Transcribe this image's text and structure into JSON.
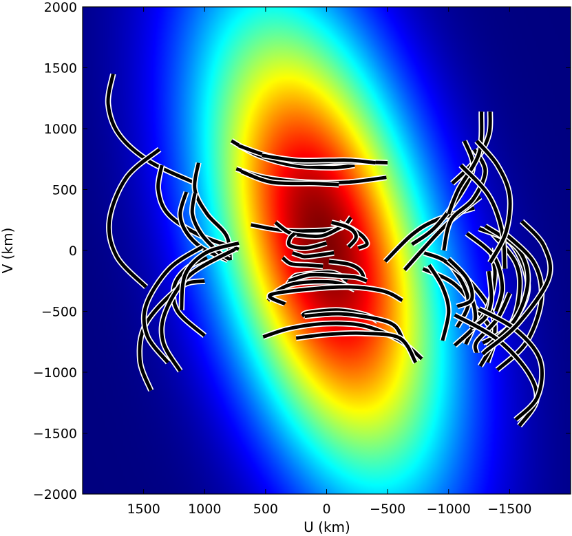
{
  "chart_data": {
    "type": "heatmap",
    "title": "",
    "xlabel": "U (km)",
    "ylabel": "V (km)",
    "x_inverted": true,
    "xlim": [
      2000,
      -2000
    ],
    "ylim": [
      -2000,
      2000
    ],
    "x_ticks": [
      1500,
      1000,
      500,
      0,
      -500,
      -1000,
      -1500
    ],
    "x_tick_labels": [
      "1500",
      "1000",
      "500",
      "0",
      "−500",
      "−1000",
      "−1500"
    ],
    "y_ticks": [
      2000,
      1500,
      1000,
      500,
      0,
      -500,
      -1000,
      -1500,
      -2000
    ],
    "y_tick_labels": [
      "2000",
      "1500",
      "1000",
      "500",
      "0",
      "−500",
      "−1000",
      "−1500",
      "−2000"
    ],
    "grid": false,
    "colormap": "jet",
    "colormap_colors": [
      "#00007f",
      "#0000ff",
      "#007fff",
      "#00ffff",
      "#7fff7f",
      "#ffff00",
      "#ff7f00",
      "#ff0000",
      "#7f0000"
    ],
    "heatmap_model": {
      "shape": "elliptical gaussian",
      "center": [
        20,
        50
      ],
      "sigma_major": 1450,
      "sigma_minor": 600,
      "rotation_deg": 15
    },
    "uv_tracks": [
      {
        "points": [
          [
            1750,
            1450
          ],
          [
            1790,
            1200
          ],
          [
            1700,
            950
          ],
          [
            1450,
            730
          ],
          [
            1070,
            550
          ]
        ]
      },
      {
        "points": [
          [
            1350,
            700
          ],
          [
            1380,
            500
          ],
          [
            1300,
            300
          ],
          [
            1050,
            130
          ],
          [
            720,
            10
          ]
        ]
      },
      {
        "points": [
          [
            1050,
            720
          ],
          [
            1080,
            500
          ],
          [
            980,
            300
          ],
          [
            820,
            120
          ],
          [
            790,
            -80
          ]
        ]
      },
      {
        "points": [
          [
            1150,
            480
          ],
          [
            1200,
            300
          ],
          [
            1150,
            150
          ],
          [
            1020,
            20
          ],
          [
            810,
            -80
          ]
        ]
      },
      {
        "points": [
          [
            1080,
            470
          ],
          [
            1100,
            300
          ],
          [
            1030,
            140
          ],
          [
            900,
            0
          ],
          [
            800,
            -70
          ]
        ]
      },
      {
        "points": [
          [
            1370,
            830
          ],
          [
            1640,
            600
          ],
          [
            1780,
            250
          ],
          [
            1720,
            -50
          ],
          [
            1480,
            -300
          ]
        ]
      },
      {
        "points": [
          [
            1000,
            -700
          ],
          [
            1220,
            -500
          ],
          [
            1250,
            -300
          ],
          [
            1150,
            -150
          ],
          [
            980,
            -60
          ]
        ]
      },
      {
        "points": [
          [
            1440,
            -1150
          ],
          [
            1530,
            -900
          ],
          [
            1480,
            -600
          ],
          [
            1200,
            -300
          ],
          [
            1000,
            -250
          ]
        ]
      },
      {
        "points": [
          [
            1300,
            -920
          ],
          [
            1470,
            -700
          ],
          [
            1480,
            -450
          ],
          [
            1290,
            -150
          ],
          [
            1020,
            30
          ]
        ]
      },
      {
        "points": [
          [
            1200,
            -990
          ],
          [
            1340,
            -750
          ],
          [
            1320,
            -500
          ],
          [
            1120,
            -200
          ],
          [
            750,
            10
          ]
        ]
      },
      {
        "points": [
          [
            1190,
            -490
          ],
          [
            1160,
            -200
          ],
          [
            990,
            -20
          ],
          [
            720,
            60
          ]
        ]
      },
      {
        "points": [
          [
            780,
            900
          ],
          [
            560,
            780
          ],
          [
            280,
            700
          ],
          [
            -50,
            680
          ],
          [
            -230,
            700
          ]
        ]
      },
      {
        "points": [
          [
            720,
            860
          ],
          [
            490,
            780
          ],
          [
            180,
            720
          ],
          [
            -120,
            730
          ],
          [
            -500,
            720
          ]
        ]
      },
      {
        "points": [
          [
            530,
            780
          ],
          [
            250,
            740
          ],
          [
            -20,
            740
          ],
          [
            -200,
            740
          ],
          [
            -400,
            720
          ]
        ]
      },
      {
        "points": [
          [
            740,
            670
          ],
          [
            510,
            600
          ],
          [
            170,
            560
          ],
          [
            -170,
            560
          ],
          [
            -490,
            600
          ]
        ]
      },
      {
        "points": [
          [
            700,
            650
          ],
          [
            450,
            560
          ],
          [
            100,
            550
          ],
          [
            -100,
            540
          ]
        ]
      },
      {
        "points": [
          [
            620,
            210
          ],
          [
            400,
            170
          ],
          [
            200,
            160
          ],
          [
            -100,
            180
          ],
          [
            -200,
            270
          ]
        ]
      },
      {
        "points": [
          [
            420,
            230
          ],
          [
            330,
            160
          ],
          [
            250,
            130
          ],
          [
            40,
            120
          ],
          [
            -130,
            200
          ]
        ]
      },
      {
        "points": [
          [
            260,
            140
          ],
          [
            300,
            100
          ],
          [
            300,
            40
          ],
          [
            170,
            20
          ],
          [
            0,
            60
          ]
        ]
      },
      {
        "points": [
          [
            -100,
            230
          ],
          [
            -220,
            170
          ],
          [
            -300,
            110
          ],
          [
            -330,
            50
          ],
          [
            -260,
            20
          ]
        ]
      },
      {
        "points": [
          [
            -40,
            230
          ],
          [
            -150,
            200
          ],
          [
            -220,
            160
          ],
          [
            -240,
            100
          ],
          [
            -180,
            30
          ]
        ]
      },
      {
        "points": [
          [
            280,
            -20
          ],
          [
            220,
            -40
          ],
          [
            160,
            -50
          ],
          [
            -60,
            -20
          ]
        ]
      },
      {
        "points": [
          [
            360,
            -60
          ],
          [
            290,
            -110
          ],
          [
            150,
            -120
          ],
          [
            30,
            -130
          ]
        ]
      },
      {
        "points": [
          [
            -20,
            -90
          ],
          [
            -170,
            -110
          ],
          [
            -260,
            -150
          ],
          [
            -300,
            -210
          ],
          [
            -290,
            -240
          ]
        ]
      },
      {
        "points": [
          [
            320,
            -280
          ],
          [
            270,
            -220
          ],
          [
            210,
            -200
          ],
          [
            -40,
            -180
          ],
          [
            -170,
            -250
          ]
        ]
      },
      {
        "points": [
          [
            -330,
            -250
          ],
          [
            -240,
            -220
          ],
          [
            -100,
            -210
          ],
          [
            130,
            -200
          ],
          [
            310,
            -250
          ]
        ]
      },
      {
        "points": [
          [
            480,
            -410
          ],
          [
            400,
            -330
          ],
          [
            250,
            -270
          ],
          [
            -50,
            -260
          ],
          [
            -230,
            -320
          ]
        ]
      },
      {
        "points": [
          [
            340,
            -440
          ],
          [
            450,
            -360
          ],
          [
            -100,
            -300
          ],
          [
            -450,
            -330
          ],
          [
            -620,
            -410
          ]
        ]
      },
      {
        "points": [
          [
            -420,
            -580
          ],
          [
            -320,
            -530
          ],
          [
            -100,
            -490
          ],
          [
            150,
            -510
          ],
          [
            200,
            -540
          ]
        ]
      },
      {
        "points": [
          [
            180,
            -540
          ],
          [
            -100,
            -520
          ],
          [
            -400,
            -560
          ],
          [
            -560,
            -620
          ],
          [
            -630,
            -750
          ]
        ]
      },
      {
        "points": [
          [
            520,
            -710
          ],
          [
            300,
            -640
          ],
          [
            0,
            -600
          ],
          [
            -310,
            -620
          ],
          [
            -600,
            -740
          ],
          [
            -780,
            -890
          ]
        ]
      },
      {
        "points": [
          [
            250,
            -720
          ],
          [
            0,
            -690
          ],
          [
            -300,
            -680
          ],
          [
            -600,
            -720
          ],
          [
            -730,
            -920
          ]
        ]
      },
      {
        "points": [
          [
            -480,
            -90
          ],
          [
            -700,
            130
          ],
          [
            -900,
            250
          ],
          [
            -1210,
            350
          ]
        ]
      },
      {
        "points": [
          [
            -640,
            -160
          ],
          [
            -800,
            20
          ],
          [
            -1000,
            230
          ],
          [
            -1260,
            440
          ]
        ]
      },
      {
        "points": [
          [
            -1030,
            550
          ],
          [
            -1230,
            750
          ],
          [
            -1330,
            950
          ],
          [
            -1340,
            1140
          ]
        ]
      },
      {
        "points": [
          [
            -1210,
            830
          ],
          [
            -1300,
            650
          ],
          [
            -1200,
            420
          ],
          [
            -1020,
            250
          ],
          [
            -960,
            0
          ]
        ]
      },
      {
        "points": [
          [
            -1130,
            900
          ],
          [
            -1200,
            700
          ],
          [
            -1120,
            500
          ],
          [
            -900,
            200
          ],
          [
            -700,
            50
          ]
        ]
      },
      {
        "points": [
          [
            -1320,
            -920
          ],
          [
            -1370,
            -700
          ],
          [
            -1240,
            -500
          ],
          [
            -1040,
            -270
          ],
          [
            -790,
            -150
          ]
        ]
      },
      {
        "points": [
          [
            -1140,
            -770
          ],
          [
            -1220,
            -550
          ],
          [
            -1150,
            -300
          ],
          [
            -990,
            -100
          ],
          [
            -800,
            -20
          ]
        ]
      },
      {
        "points": [
          [
            -950,
            -740
          ],
          [
            -1000,
            -500
          ],
          [
            -950,
            -300
          ],
          [
            -840,
            -120
          ]
        ]
      },
      {
        "points": [
          [
            -1070,
            -630
          ],
          [
            -1160,
            -450
          ],
          [
            -1120,
            -280
          ],
          [
            -990,
            -80
          ]
        ]
      },
      {
        "points": [
          [
            -1260,
            -950
          ],
          [
            -1370,
            -730
          ],
          [
            -1350,
            -500
          ],
          [
            -1150,
            -230
          ],
          [
            -960,
            -80
          ]
        ]
      },
      {
        "points": [
          [
            -1230,
            -840
          ],
          [
            -1230,
            -750
          ],
          [
            -1400,
            -560
          ],
          [
            -1500,
            -350
          ]
        ]
      },
      {
        "points": [
          [
            -1050,
            -780
          ],
          [
            -1200,
            -640
          ],
          [
            -1320,
            -470
          ],
          [
            -1380,
            -200
          ],
          [
            -1340,
            20
          ]
        ]
      },
      {
        "points": [
          [
            -1070,
            -460
          ],
          [
            -1190,
            -400
          ],
          [
            -1150,
            -230
          ],
          [
            -1000,
            -70
          ]
        ]
      },
      {
        "points": [
          [
            -1180,
            -640
          ],
          [
            -1300,
            -550
          ],
          [
            -1350,
            -400
          ],
          [
            -1330,
            -170
          ]
        ]
      },
      {
        "points": [
          [
            -1390,
            -500
          ],
          [
            -1440,
            -300
          ],
          [
            -1370,
            -50
          ],
          [
            -1150,
            140
          ]
        ]
      },
      {
        "points": [
          [
            -1280,
            -760
          ],
          [
            -1500,
            -620
          ],
          [
            -1580,
            -350
          ],
          [
            -1550,
            -100
          ],
          [
            -1350,
            150
          ]
        ]
      },
      {
        "points": [
          [
            -1280,
            -850
          ],
          [
            -1520,
            -600
          ],
          [
            -1650,
            -300
          ],
          [
            -1520,
            50
          ],
          [
            -1250,
            180
          ]
        ]
      },
      {
        "points": [
          [
            -1320,
            -790
          ],
          [
            -1550,
            -560
          ],
          [
            -1650,
            -250
          ],
          [
            -1570,
            10
          ],
          [
            -1300,
            200
          ]
        ]
      },
      {
        "points": [
          [
            -1400,
            -980
          ],
          [
            -1640,
            -750
          ],
          [
            -1760,
            -400
          ],
          [
            -1700,
            -100
          ],
          [
            -1450,
            150
          ]
        ]
      },
      {
        "points": [
          [
            -1580,
            -1440
          ],
          [
            -1720,
            -1230
          ],
          [
            -1650,
            -1000
          ],
          [
            -1400,
            -730
          ],
          [
            -1050,
            -530
          ]
        ]
      },
      {
        "points": [
          [
            -1550,
            -1390
          ],
          [
            -1730,
            -1200
          ],
          [
            -1750,
            -900
          ],
          [
            -1550,
            -650
          ],
          [
            -1250,
            -480
          ]
        ]
      },
      {
        "points": [
          [
            -1300,
            -830
          ],
          [
            -1570,
            -600
          ],
          [
            -1820,
            -230
          ],
          [
            -1780,
            40
          ],
          [
            -1600,
            240
          ]
        ]
      },
      {
        "points": [
          [
            -1270,
            1140
          ],
          [
            -1250,
            800
          ],
          [
            -1080,
            500
          ],
          [
            -1000,
            300
          ]
        ]
      },
      {
        "points": [
          [
            -1100,
            700
          ],
          [
            -1330,
            450
          ],
          [
            -1440,
            150
          ],
          [
            -1460,
            -150
          ]
        ]
      },
      {
        "points": [
          [
            -1230,
            900
          ],
          [
            -1400,
            700
          ],
          [
            -1500,
            450
          ],
          [
            -1470,
            150
          ],
          [
            -1340,
            -100
          ]
        ]
      }
    ]
  }
}
